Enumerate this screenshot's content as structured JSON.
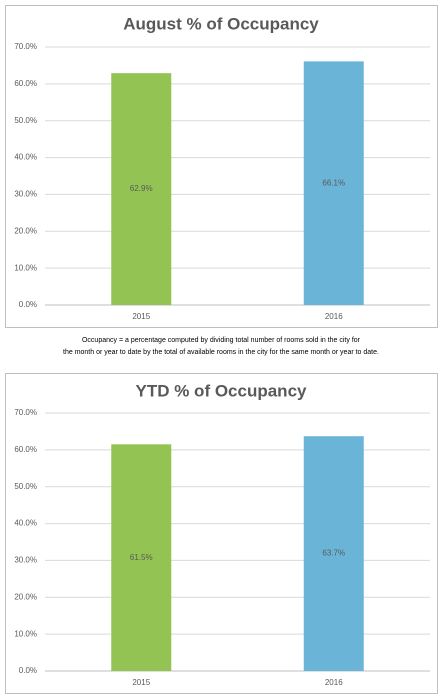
{
  "chart_data": [
    {
      "type": "bar",
      "title": "August % of Occupancy",
      "categories": [
        "2015",
        "2016"
      ],
      "values": [
        62.9,
        66.1
      ],
      "value_labels": [
        "62.9%",
        "66.1%"
      ],
      "colors": [
        "#92c353",
        "#6ab4d8"
      ],
      "ylim": [
        0,
        70
      ],
      "yticks": [
        {
          "value": 0,
          "label": "0.0%"
        },
        {
          "value": 10,
          "label": "10.0%"
        },
        {
          "value": 20,
          "label": "20.0%"
        },
        {
          "value": 30,
          "label": "30.0%"
        },
        {
          "value": 40,
          "label": "40.0%"
        },
        {
          "value": 50,
          "label": "50.0%"
        },
        {
          "value": 60,
          "label": "60.0%"
        },
        {
          "value": 70,
          "label": "70.0%"
        }
      ],
      "grid": true
    },
    {
      "type": "bar",
      "title": "YTD % of Occupancy",
      "categories": [
        "2015",
        "2016"
      ],
      "values": [
        61.5,
        63.7
      ],
      "value_labels": [
        "61.5%",
        "63.7%"
      ],
      "colors": [
        "#92c353",
        "#6ab4d8"
      ],
      "ylim": [
        0,
        70
      ],
      "yticks": [
        {
          "value": 0,
          "label": "0.0%"
        },
        {
          "value": 10,
          "label": "10.0%"
        },
        {
          "value": 20,
          "label": "20.0%"
        },
        {
          "value": 30,
          "label": "30.0%"
        },
        {
          "value": 40,
          "label": "40.0%"
        },
        {
          "value": 50,
          "label": "50.0%"
        },
        {
          "value": 60,
          "label": "60.0%"
        },
        {
          "value": 70,
          "label": "70.0%"
        }
      ],
      "grid": true
    }
  ],
  "note": [
    "Occupancy = a percentage computed by dividing total number of rooms sold in the city for",
    "the month or year to date by the total of available rooms in the city for the same month or year to date."
  ]
}
